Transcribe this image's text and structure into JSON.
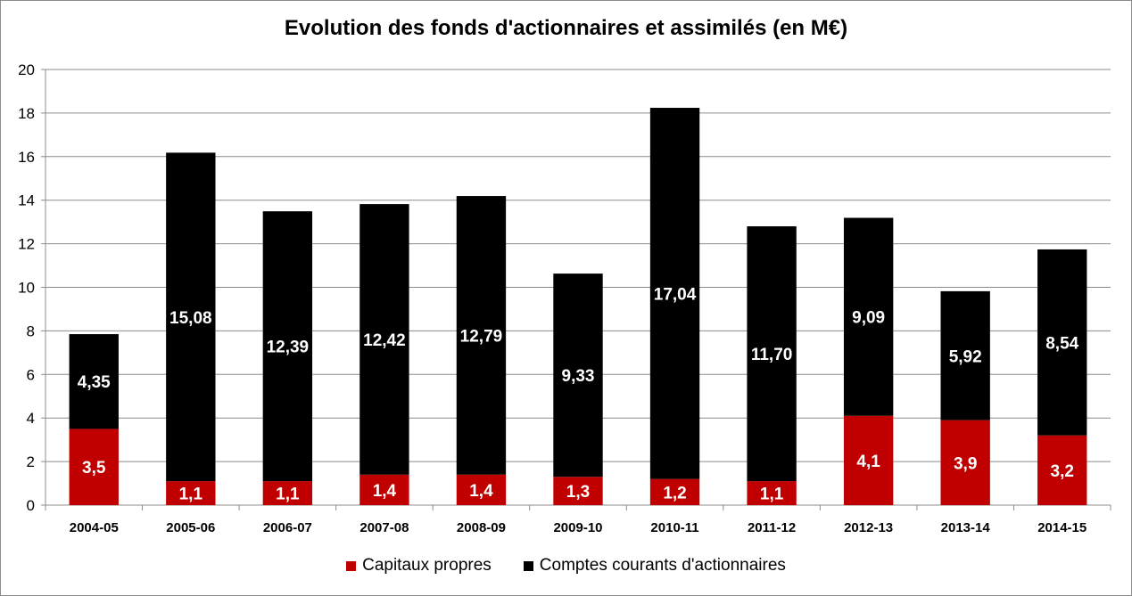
{
  "chart_data": {
    "type": "bar",
    "stacked": true,
    "title": "Evolution des fonds d'actionnaires et assimilés (en M€)",
    "xlabel": "",
    "ylabel": "",
    "ylim": [
      0,
      20
    ],
    "yticks": [
      "0",
      "2",
      "4",
      "6",
      "8",
      "10",
      "12",
      "14",
      "16",
      "18",
      "20"
    ],
    "grid": true,
    "legend_position": "bottom",
    "categories": [
      "2004-05",
      "2005-06",
      "2006-07",
      "2007-08",
      "2008-09",
      "2009-10",
      "2010-11",
      "2011-12",
      "2012-13",
      "2013-14",
      "2014-15"
    ],
    "series": [
      {
        "name": "Capitaux propres",
        "color": "#c00000",
        "values": [
          3.5,
          1.1,
          1.1,
          1.4,
          1.4,
          1.3,
          1.2,
          1.1,
          4.1,
          3.9,
          3.2
        ],
        "labels": [
          "3,5",
          "1,1",
          "1,1",
          "1,4",
          "1,4",
          "1,3",
          "1,2",
          "1,1",
          "4,1",
          "3,9",
          "3,2"
        ]
      },
      {
        "name": "Comptes courants d'actionnaires",
        "color": "#000000",
        "values": [
          4.35,
          15.08,
          12.39,
          12.42,
          12.79,
          9.33,
          17.04,
          11.7,
          9.09,
          5.92,
          8.54
        ],
        "labels": [
          "4,35",
          "15,08",
          "12,39",
          "12,42",
          "12,79",
          "9,33",
          "17,04",
          "11,70",
          "9,09",
          "5,92",
          "8,54"
        ]
      }
    ]
  }
}
